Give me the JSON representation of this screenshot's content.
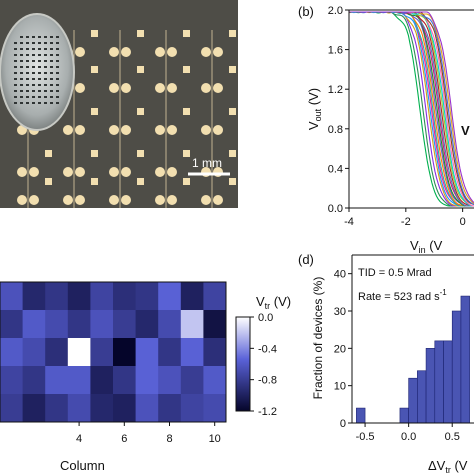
{
  "panels": {
    "a": {
      "scale_bar_label": "1 mm",
      "background_color": "#4e4d47",
      "pad_color": "#f2dfb0"
    },
    "b": {
      "label": "(b)",
      "xlabel_main": "V",
      "xlabel_sub": "in",
      "xlabel_tail": " (V",
      "ylabel_main": "V",
      "ylabel_sub": "out",
      "ylabel_tail": " (V)",
      "cut_annotation": "V"
    },
    "c": {
      "xlabel": "Column",
      "colorbar_label_main": "V",
      "colorbar_label_sub": "tr",
      "colorbar_label_tail": " (V)",
      "colorbar_ticks": [
        "0.0",
        "-0.4",
        "-0.8",
        "-1.2"
      ]
    },
    "d": {
      "label": "(d)",
      "annotation_line1": "TID = 0.5 Mrad",
      "annotation_line2_main": "Rate = 523 rad s",
      "annotation_line2_sup": "-1",
      "ylabel": "Fraction of devices (%)",
      "xlabel_main": "ΔV",
      "xlabel_sub": "tr",
      "xlabel_tail": " (V"
    }
  },
  "chart_data": [
    {
      "type": "line",
      "panel": "b",
      "title": "",
      "xlabel": "V_in (V)",
      "ylabel": "V_out (V)",
      "xlim": [
        -4,
        0.4
      ],
      "ylim": [
        0,
        2.0
      ],
      "x_ticks": [
        "-4",
        "-2",
        "0"
      ],
      "y_ticks": [
        "0.0",
        "0.4",
        "0.8",
        "1.2",
        "1.6",
        "2.0"
      ],
      "curve_description": "many overlapping inverter transfer curves, transitions between about -2 V and -0.3 V",
      "transitions": [
        -1.5,
        -1.4,
        -1.3,
        -1.2,
        -1.15,
        -1.1,
        -1.05,
        -1.0,
        -0.95,
        -0.9,
        -0.85,
        -0.8,
        -0.75,
        -0.7,
        -0.65,
        -0.6,
        -0.55,
        -0.5,
        -0.45,
        -0.4
      ],
      "colors": [
        "#00b04f",
        "#2e8b57",
        "#8a2be2",
        "#d4a017",
        "#1e90ff",
        "#ff1493",
        "#20b2aa",
        "#ff7f00",
        "#6a5acd",
        "#228b22",
        "#c71585",
        "#4682b4",
        "#b22222",
        "#9acd32",
        "#00ced1",
        "#ff69b4",
        "#8b4513",
        "#4169e1",
        "#daa520",
        "#9932cc"
      ]
    },
    {
      "type": "heatmap",
      "panel": "c",
      "title": "",
      "xlabel": "Column",
      "ylabel": "",
      "x_ticks": [
        4,
        6,
        8,
        10
      ],
      "columns": [
        1,
        2,
        3,
        4,
        5,
        6,
        7,
        8,
        9,
        10
      ],
      "vlim": [
        -1.2,
        0.0
      ],
      "values": [
        [
          -0.65,
          -0.95,
          -0.85,
          -1.0,
          -0.75,
          -0.9,
          -0.85,
          -0.55,
          -1.0,
          -0.75
        ],
        [
          -0.85,
          -0.6,
          -0.7,
          -0.85,
          -0.65,
          -0.8,
          -0.95,
          -0.7,
          -0.2,
          -1.1
        ],
        [
          -0.6,
          -0.7,
          -0.9,
          0.0,
          -0.8,
          -1.2,
          -0.55,
          -0.85,
          -0.55,
          -0.9
        ],
        [
          -0.75,
          -0.85,
          -0.6,
          -0.6,
          -1.0,
          -0.85,
          -0.55,
          -0.65,
          -0.8,
          -0.6
        ],
        [
          -0.8,
          -1.0,
          -0.85,
          -0.7,
          -0.95,
          -1.0,
          -0.65,
          -0.85,
          -0.75,
          -0.7
        ]
      ]
    },
    {
      "type": "bar",
      "panel": "d",
      "title": "",
      "xlabel": "ΔV_tr (V",
      "ylabel": "Fraction of devices (%)",
      "xlim": [
        -0.65,
        0.75
      ],
      "ylim": [
        0,
        45
      ],
      "x_ticks": [
        "-0.5",
        "0.0",
        "0.5"
      ],
      "y_ticks": [
        "0",
        "10",
        "20",
        "30",
        "40"
      ],
      "bin_width": 0.1,
      "bin_starts": [
        -0.6,
        -0.5,
        -0.4,
        -0.3,
        -0.2,
        -0.1,
        0.0,
        0.1,
        0.2,
        0.3,
        0.4,
        0.5,
        0.6
      ],
      "values": [
        4,
        0,
        0,
        0,
        0,
        4,
        12,
        14,
        20,
        22,
        22,
        30,
        34
      ],
      "bar_color": "#4a55b3"
    }
  ]
}
